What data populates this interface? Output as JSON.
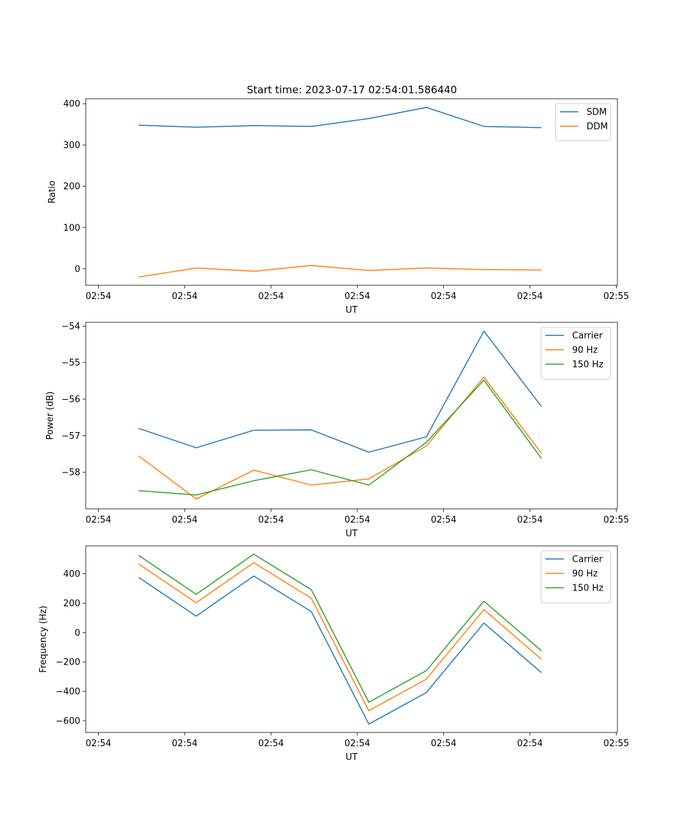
{
  "figure_title": "Start time: 2023-07-17 02:54:01.586440",
  "colors": {
    "blue": "#1f77b4",
    "orange": "#ff7f0e",
    "green": "#2ca02c"
  },
  "chart_data": [
    {
      "type": "line",
      "title": "Start time: 2023-07-17 02:54:01.586440",
      "xlabel": "UT",
      "ylabel": "Ratio",
      "xlim": [
        -0.62,
        8.62
      ],
      "ylim": [
        -40,
        412
      ],
      "x_ticks": [
        -0.4,
        1.1,
        2.6,
        4.1,
        5.6,
        7.1,
        8.6
      ],
      "x_tick_labels": [
        "02:54",
        "02:54",
        "02:54",
        "02:54",
        "02:54",
        "02:54",
        "02:55"
      ],
      "y_ticks": [
        0,
        100,
        200,
        300,
        400
      ],
      "y_tick_labels": [
        "0",
        "100",
        "200",
        "300",
        "400"
      ],
      "x": [
        0.3,
        1.3,
        2.3,
        3.3,
        4.3,
        5.3,
        6.3,
        7.3
      ],
      "legend_position": "top-right",
      "series": [
        {
          "name": "SDM",
          "color": "#1f77b4",
          "values": [
            348,
            343,
            347,
            345,
            364,
            391,
            345,
            342
          ]
        },
        {
          "name": "DDM",
          "color": "#ff7f0e",
          "values": [
            -20,
            2,
            -6,
            8,
            -4,
            2,
            -2,
            -3
          ]
        }
      ]
    },
    {
      "type": "line",
      "title": "",
      "xlabel": "UT",
      "ylabel": "Power (dB)",
      "xlim": [
        -0.62,
        8.62
      ],
      "ylim": [
        -59.0,
        -53.9
      ],
      "x_ticks": [
        -0.4,
        1.1,
        2.6,
        4.1,
        5.6,
        7.1,
        8.6
      ],
      "x_tick_labels": [
        "02:54",
        "02:54",
        "02:54",
        "02:54",
        "02:54",
        "02:54",
        "02:55"
      ],
      "y_ticks": [
        -58,
        -57,
        -56,
        -55,
        -54
      ],
      "y_tick_labels": [
        "−58",
        "−57",
        "−56",
        "−55",
        "−54"
      ],
      "x": [
        0.3,
        1.3,
        2.3,
        3.3,
        4.3,
        5.3,
        6.3,
        7.3
      ],
      "legend_position": "top-right",
      "series": [
        {
          "name": "Carrier",
          "color": "#1f77b4",
          "values": [
            -56.8,
            -57.33,
            -56.85,
            -56.84,
            -57.45,
            -57.03,
            -54.14,
            -56.2
          ]
        },
        {
          "name": "90 Hz",
          "color": "#ff7f0e",
          "values": [
            -57.55,
            -58.73,
            -57.94,
            -58.35,
            -58.18,
            -57.28,
            -55.4,
            -57.48
          ]
        },
        {
          "name": "150 Hz",
          "color": "#2ca02c",
          "values": [
            -58.5,
            -58.62,
            -58.23,
            -57.93,
            -58.35,
            -57.18,
            -55.48,
            -57.62
          ]
        }
      ]
    },
    {
      "type": "line",
      "title": "",
      "xlabel": "UT",
      "ylabel": "Frequency (Hz)",
      "xlim": [
        -0.62,
        8.62
      ],
      "ylim": [
        -680,
        590
      ],
      "x_ticks": [
        -0.4,
        1.1,
        2.6,
        4.1,
        5.6,
        7.1,
        8.6
      ],
      "x_tick_labels": [
        "02:54",
        "02:54",
        "02:54",
        "02:54",
        "02:54",
        "02:54",
        "02:55"
      ],
      "y_ticks": [
        -600,
        -400,
        -200,
        0,
        200,
        400
      ],
      "y_tick_labels": [
        "−600",
        "−400",
        "−200",
        "0",
        "200",
        "400"
      ],
      "x": [
        0.3,
        1.3,
        2.3,
        3.3,
        4.3,
        5.3,
        6.3,
        7.3
      ],
      "legend_position": "top-right",
      "series": [
        {
          "name": "Carrier",
          "color": "#1f77b4",
          "values": [
            376,
            112,
            385,
            143,
            -623,
            -408,
            65,
            -273
          ]
        },
        {
          "name": "90 Hz",
          "color": "#ff7f0e",
          "values": [
            467,
            203,
            476,
            234,
            -532,
            -317,
            156,
            -182
          ]
        },
        {
          "name": "150 Hz",
          "color": "#2ca02c",
          "values": [
            525,
            261,
            534,
            292,
            -474,
            -259,
            214,
            -124
          ]
        }
      ]
    }
  ]
}
